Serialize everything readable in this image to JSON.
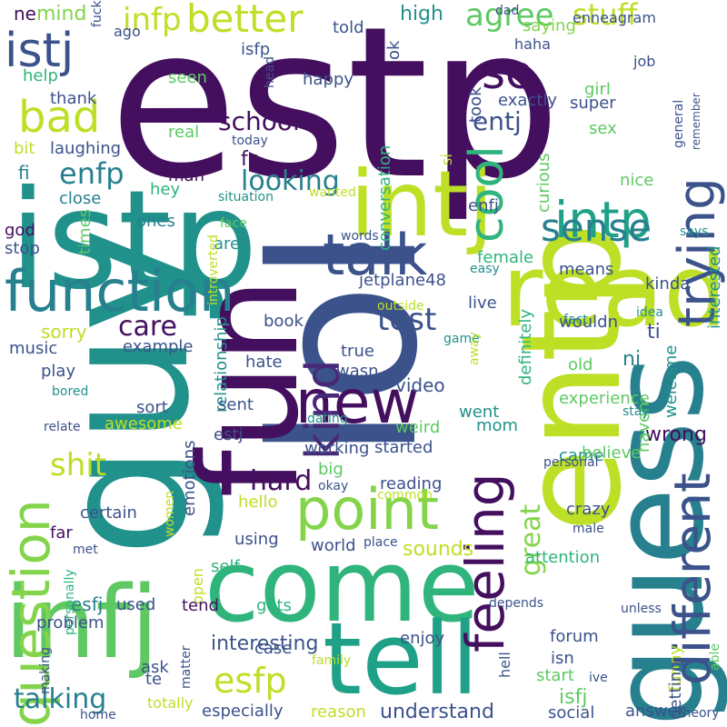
{
  "background": "#ffffff",
  "words": [
    {
      "text": "estp",
      "color": "#440f5e"
    },
    {
      "text": "istp",
      "color": "#21918c"
    },
    {
      "text": "guy",
      "color": "#21918c"
    },
    {
      "text": "lol",
      "color": "#3b528b"
    },
    {
      "text": "fun",
      "color": "#440f5e"
    },
    {
      "text": "come",
      "color": "#2fb47c"
    },
    {
      "text": "entp",
      "color": "#bddf26"
    },
    {
      "text": "guess",
      "color": "#27808e"
    },
    {
      "text": "infj",
      "color": "#5ec962"
    },
    {
      "text": "tell",
      "color": "#1fa187"
    },
    {
      "text": "read",
      "color": "#bddf26"
    },
    {
      "text": "intj",
      "color": "#bddf26"
    },
    {
      "text": "function",
      "color": "#27808e"
    },
    {
      "text": "talk",
      "color": "#3b528b"
    },
    {
      "text": "new",
      "color": "#440f5e"
    },
    {
      "text": "question",
      "color": "#84d44b"
    },
    {
      "text": "point",
      "color": "#84d44b"
    },
    {
      "text": "different",
      "color": "#3b528b"
    },
    {
      "text": "feeling",
      "color": "#440f5e"
    },
    {
      "text": "trying",
      "color": "#3b528b"
    },
    {
      "text": "kind",
      "color": "#482878"
    },
    {
      "text": "intp",
      "color": "#1fa187"
    },
    {
      "text": "cool",
      "color": "#2fb47c"
    },
    {
      "text": "se",
      "color": "#440f5e"
    },
    {
      "text": "istj",
      "color": "#3b528b"
    },
    {
      "text": "bad",
      "color": "#bddf26"
    },
    {
      "text": "better",
      "color": "#bddf26"
    },
    {
      "text": "infp",
      "color": "#bddf26"
    },
    {
      "text": "agree",
      "color": "#5ec962"
    },
    {
      "text": "stuff",
      "color": "#bddf26"
    },
    {
      "text": "sense",
      "color": "#27808e"
    },
    {
      "text": "esfp",
      "color": "#bddf26"
    },
    {
      "text": "talking",
      "color": "#27808e"
    },
    {
      "text": "shit",
      "color": "#bddf26"
    },
    {
      "text": "test",
      "color": "#3b528b"
    },
    {
      "text": "school",
      "color": "#440f5e"
    },
    {
      "text": "enfp",
      "color": "#27808e"
    },
    {
      "text": "looking",
      "color": "#27808e"
    },
    {
      "text": "care",
      "color": "#440f5e"
    },
    {
      "text": "hard",
      "color": "#440f5e"
    },
    {
      "text": "entj",
      "color": "#3b528b"
    },
    {
      "text": "great",
      "color": "#84d44b"
    },
    {
      "text": "mind",
      "color": "#84d44b"
    },
    {
      "text": "high",
      "color": "#21918c"
    },
    {
      "text": "ne",
      "color": "#440f5e"
    },
    {
      "text": "fi",
      "color": "#27808e"
    },
    {
      "text": "fe",
      "color": "#440f5e"
    },
    {
      "text": "ti",
      "color": "#3b528b"
    },
    {
      "text": "ni",
      "color": "#27808e"
    },
    {
      "text": "help",
      "color": "#2fb47c"
    },
    {
      "text": "thank",
      "color": "#3b528b"
    },
    {
      "text": "bit",
      "color": "#bddf26"
    },
    {
      "text": "laughing",
      "color": "#3b528b"
    },
    {
      "text": "man",
      "color": "#440f5e"
    },
    {
      "text": "hey",
      "color": "#2fb47c"
    },
    {
      "text": "close",
      "color": "#27808e"
    },
    {
      "text": "god",
      "color": "#440f5e"
    },
    {
      "text": "times",
      "color": "#5ec962"
    },
    {
      "text": "stop",
      "color": "#3b528b"
    },
    {
      "text": "ones",
      "color": "#27808e"
    },
    {
      "text": "aren",
      "color": "#21918c"
    },
    {
      "text": "sorry",
      "color": "#bddf26"
    },
    {
      "text": "music",
      "color": "#3b528b"
    },
    {
      "text": "example",
      "color": "#3b528b"
    },
    {
      "text": "play",
      "color": "#3b528b"
    },
    {
      "text": "book",
      "color": "#3b528b"
    },
    {
      "text": "relationship",
      "color": "#21918c"
    },
    {
      "text": "hate",
      "color": "#3b528b"
    },
    {
      "text": "true",
      "color": "#3b528b"
    },
    {
      "text": "wasn",
      "color": "#3b528b"
    },
    {
      "text": "video",
      "color": "#3b528b"
    },
    {
      "text": "sent",
      "color": "#3b528b"
    },
    {
      "text": "sort",
      "color": "#3b528b"
    },
    {
      "text": "awesome",
      "color": "#bddf26"
    },
    {
      "text": "emotions",
      "color": "#3b528b"
    },
    {
      "text": "estj",
      "color": "#3b528b"
    },
    {
      "text": "working",
      "color": "#3b528b"
    },
    {
      "text": "started",
      "color": "#3b528b"
    },
    {
      "text": "weird",
      "color": "#5ec962"
    },
    {
      "text": "went",
      "color": "#21918c"
    },
    {
      "text": "mom",
      "color": "#21918c"
    },
    {
      "text": "came",
      "color": "#21918c"
    },
    {
      "text": "wrong",
      "color": "#440f5e"
    },
    {
      "text": "definitely",
      "color": "#2fb47c"
    },
    {
      "text": "experience",
      "color": "#5ec962"
    },
    {
      "text": "haven",
      "color": "#5ec962"
    },
    {
      "text": "believe",
      "color": "#5ec962"
    },
    {
      "text": "old",
      "color": "#5ec962"
    },
    {
      "text": "welcome",
      "color": "#21918c"
    },
    {
      "text": "stay",
      "color": "#21918c"
    },
    {
      "text": "enfj",
      "color": "#3b528b"
    },
    {
      "text": "female",
      "color": "#2fb47c"
    },
    {
      "text": "means",
      "color": "#3b528b"
    },
    {
      "text": "kinda",
      "color": "#3b528b"
    },
    {
      "text": "live",
      "color": "#3b528b"
    },
    {
      "text": "wouldn",
      "color": "#3b528b"
    },
    {
      "text": "curious",
      "color": "#5ec962"
    },
    {
      "text": "nice",
      "color": "#5ec962"
    },
    {
      "text": "fact",
      "color": "#21918c"
    },
    {
      "text": "idea",
      "color": "#21918c"
    },
    {
      "text": "says",
      "color": "#21918c"
    },
    {
      "text": "interested",
      "color": "#21918c"
    },
    {
      "text": "remember",
      "color": "#3b528b"
    },
    {
      "text": "general",
      "color": "#3b528b"
    },
    {
      "text": "conversation",
      "color": "#2fb47c"
    },
    {
      "text": "exactly",
      "color": "#3b528b"
    },
    {
      "text": "super",
      "color": "#3b528b"
    },
    {
      "text": "sex",
      "color": "#5ec962"
    },
    {
      "text": "girl",
      "color": "#5ec962"
    },
    {
      "text": "took",
      "color": "#3b528b"
    },
    {
      "text": "job",
      "color": "#3b528b"
    },
    {
      "text": "saying",
      "color": "#84d44b"
    },
    {
      "text": "enneagram",
      "color": "#3b528b"
    },
    {
      "text": "haha",
      "color": "#3b528b"
    },
    {
      "text": "dad",
      "color": "#3b528b"
    },
    {
      "text": "told",
      "color": "#3b528b"
    },
    {
      "text": "ok",
      "color": "#3b528b"
    },
    {
      "text": "happy",
      "color": "#3b528b"
    },
    {
      "text": "isfp",
      "color": "#3b528b"
    },
    {
      "text": "fuck",
      "color": "#3b528b"
    },
    {
      "text": "ago",
      "color": "#3b528b"
    },
    {
      "text": "seen",
      "color": "#5ec962"
    },
    {
      "text": "real",
      "color": "#5ec962"
    },
    {
      "text": "today",
      "color": "#3b528b"
    },
    {
      "text": "head",
      "color": "#3b528b"
    },
    {
      "text": "situation",
      "color": "#21918c"
    },
    {
      "text": "si",
      "color": "#bddf26"
    },
    {
      "text": "face",
      "color": "#5ec962"
    },
    {
      "text": "wanted",
      "color": "#bddf26"
    },
    {
      "text": "introverted",
      "color": "#bddf26"
    },
    {
      "text": "words",
      "color": "#3b528b"
    },
    {
      "text": "won",
      "color": "#3b528b"
    },
    {
      "text": "jetplane48",
      "color": "#3b528b"
    },
    {
      "text": "easy",
      "color": "#21918c"
    },
    {
      "text": "outside",
      "color": "#bddf26"
    },
    {
      "text": "game",
      "color": "#21918c"
    },
    {
      "text": "away",
      "color": "#bddf26"
    },
    {
      "text": "bored",
      "color": "#21918c"
    },
    {
      "text": "relate",
      "color": "#3b528b"
    },
    {
      "text": "dating",
      "color": "#21918c"
    },
    {
      "text": "big",
      "color": "#5ec962"
    },
    {
      "text": "okay",
      "color": "#3b528b"
    },
    {
      "text": "common",
      "color": "#bddf26"
    },
    {
      "text": "personal",
      "color": "#3b528b"
    },
    {
      "text": "crazy",
      "color": "#3b528b"
    },
    {
      "text": "male",
      "color": "#3b528b"
    },
    {
      "text": "attention",
      "color": "#2fb47c"
    },
    {
      "text": "reading",
      "color": "#3b528b"
    },
    {
      "text": "sounds",
      "color": "#bddf26"
    },
    {
      "text": "world",
      "color": "#3b528b"
    },
    {
      "text": "place",
      "color": "#3b528b"
    },
    {
      "text": "self",
      "color": "#2fb47c"
    },
    {
      "text": "gets",
      "color": "#2fb47c"
    },
    {
      "text": "using",
      "color": "#3b528b"
    },
    {
      "text": "hello",
      "color": "#bddf26"
    },
    {
      "text": "open",
      "color": "#bddf26"
    },
    {
      "text": "women",
      "color": "#bddf26"
    },
    {
      "text": "far",
      "color": "#440f5e"
    },
    {
      "text": "certain",
      "color": "#3b528b"
    },
    {
      "text": "met",
      "color": "#3b528b"
    },
    {
      "text": "esfj",
      "color": "#27808e"
    },
    {
      "text": "used",
      "color": "#3b528b"
    },
    {
      "text": "tend",
      "color": "#440f5e"
    },
    {
      "text": "problem",
      "color": "#3b528b"
    },
    {
      "text": "personally",
      "color": "#2fb47c"
    },
    {
      "text": "making",
      "color": "#3b528b"
    },
    {
      "text": "matter",
      "color": "#3b528b"
    },
    {
      "text": "ask",
      "color": "#3b528b"
    },
    {
      "text": "te",
      "color": "#3b528b"
    },
    {
      "text": "interesting",
      "color": "#3b528b"
    },
    {
      "text": "case",
      "color": "#3b528b"
    },
    {
      "text": "family",
      "color": "#bddf26"
    },
    {
      "text": "enjoy",
      "color": "#3b528b"
    },
    {
      "text": "hell",
      "color": "#3b528b"
    },
    {
      "text": "forum",
      "color": "#3b528b"
    },
    {
      "text": "isn",
      "color": "#3b528b"
    },
    {
      "text": "start",
      "color": "#5ec962"
    },
    {
      "text": "funny",
      "color": "#bddf26"
    },
    {
      "text": "ive",
      "color": "#3b528b"
    },
    {
      "text": "unless",
      "color": "#3b528b"
    },
    {
      "text": "depends",
      "color": "#3b528b"
    },
    {
      "text": "getting",
      "color": "#3b528b"
    },
    {
      "text": "able",
      "color": "#5ec962"
    },
    {
      "text": "isfj",
      "color": "#5ec962"
    },
    {
      "text": "answer",
      "color": "#3b528b"
    },
    {
      "text": "theory",
      "color": "#3b528b"
    },
    {
      "text": "social",
      "color": "#3b528b"
    },
    {
      "text": "understand",
      "color": "#3b528b"
    },
    {
      "text": "reason",
      "color": "#bddf26"
    },
    {
      "text": "especially",
      "color": "#3b528b"
    },
    {
      "text": "totally",
      "color": "#bddf26"
    },
    {
      "text": "home",
      "color": "#3b528b"
    }
  ]
}
